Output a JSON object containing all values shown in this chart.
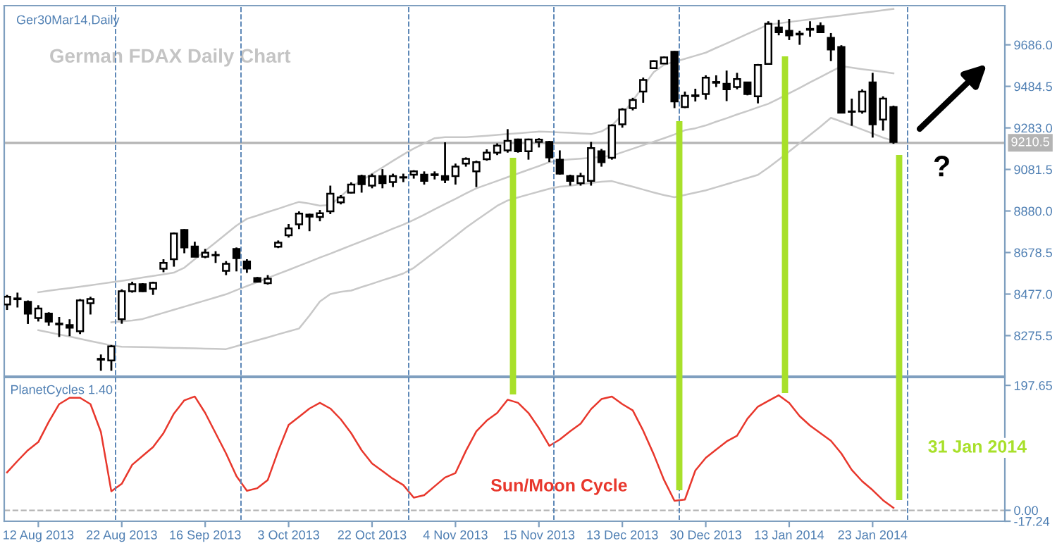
{
  "chart_data": [
    {
      "type": "candlestick",
      "categories": [
        null,
        null,
        null,
        null,
        null,
        null,
        null,
        null,
        null,
        null,
        null,
        null,
        null,
        null,
        null,
        null,
        null,
        null,
        null,
        null,
        null,
        null,
        null,
        null,
        null,
        null,
        null,
        null,
        null,
        null,
        null,
        null,
        null,
        null,
        null,
        null,
        null,
        null,
        null,
        null,
        null,
        null,
        null,
        null,
        null,
        null,
        null,
        null,
        null,
        null,
        null,
        null,
        null,
        null,
        null,
        null,
        null,
        null,
        null,
        null,
        null,
        null,
        null,
        null,
        null,
        null,
        null,
        null,
        null,
        null,
        null,
        null,
        null,
        null,
        null,
        null,
        null,
        null,
        null,
        null,
        null,
        null,
        null,
        null,
        null,
        null
      ],
      "ohlc": [
        [
          8427,
          8473,
          8400,
          8464
        ],
        [
          8456,
          8484,
          8412,
          8452
        ],
        [
          8439,
          8446,
          8332,
          8382
        ],
        [
          8361,
          8423,
          8344,
          8407
        ],
        [
          8382,
          8389,
          8323,
          8344
        ],
        [
          8330,
          8366,
          8269,
          8334
        ],
        [
          8327,
          8355,
          8273,
          8314
        ],
        [
          8297,
          8453,
          8283,
          8446
        ],
        [
          8433,
          8464,
          8378,
          8453
        ],
        [
          8163,
          8184,
          8105,
          8159
        ],
        [
          8155,
          8230,
          8105,
          8223
        ],
        [
          8355,
          8500,
          8333,
          8491
        ],
        [
          8491,
          8537,
          8484,
          8525
        ],
        [
          8525,
          8530,
          8487,
          8491
        ],
        [
          8503,
          8537,
          8473,
          8532
        ],
        [
          8600,
          8646,
          8583,
          8628
        ],
        [
          8646,
          8776,
          8610,
          8771
        ],
        [
          8788,
          8792,
          8675,
          8703
        ],
        [
          8708,
          8731,
          8656,
          8658
        ],
        [
          8658,
          8696,
          8651,
          8678
        ],
        [
          8665,
          8685,
          8628,
          8667
        ],
        [
          8590,
          8637,
          8569,
          8624
        ],
        [
          8696,
          8703,
          8587,
          8651
        ],
        [
          8635,
          8646,
          8580,
          8601
        ],
        [
          8555,
          8560,
          8535,
          8537
        ],
        [
          8530,
          8569,
          8523,
          8551
        ],
        [
          8707,
          8737,
          8700,
          8726
        ],
        [
          8762,
          8817,
          8751,
          8796
        ],
        [
          8815,
          8878,
          8792,
          8867
        ],
        [
          8862,
          8867,
          8782,
          8853
        ],
        [
          8851,
          8885,
          8830,
          8869
        ],
        [
          8878,
          9003,
          8865,
          8964
        ],
        [
          8922,
          8957,
          8912,
          8946
        ],
        [
          8969,
          9019,
          8965,
          9008
        ],
        [
          9049,
          9056,
          8969,
          9010
        ],
        [
          9003,
          9061,
          8990,
          9049
        ],
        [
          9049,
          9083,
          8990,
          9015
        ],
        [
          9020,
          9061,
          8996,
          9049
        ],
        [
          9042,
          9061,
          9020,
          9044
        ],
        [
          9056,
          9078,
          9037,
          9072
        ],
        [
          9056,
          9072,
          9008,
          9026
        ],
        [
          9058,
          9072,
          9033,
          9054
        ],
        [
          9049,
          9213,
          9015,
          9031
        ],
        [
          9049,
          9110,
          9008,
          9095
        ],
        [
          9110,
          9140,
          9095,
          9133
        ],
        [
          9072,
          9124,
          8996,
          9117
        ],
        [
          9131,
          9179,
          9124,
          9163
        ],
        [
          9163,
          9208,
          9151,
          9197
        ],
        [
          9174,
          9277,
          9163,
          9220
        ],
        [
          9227,
          9231,
          9163,
          9170
        ],
        [
          9170,
          9231,
          9129,
          9227
        ],
        [
          9215,
          9233,
          9188,
          9226
        ],
        [
          9215,
          9220,
          9117,
          9140
        ],
        [
          9129,
          9174,
          9056,
          9061
        ],
        [
          9049,
          9056,
          9003,
          9026
        ],
        [
          9015,
          9065,
          9003,
          9049
        ],
        [
          9026,
          9215,
          9003,
          9185
        ],
        [
          9170,
          9181,
          9095,
          9117
        ],
        [
          9138,
          9300,
          9129,
          9295
        ],
        [
          9300,
          9379,
          9284,
          9372
        ],
        [
          9379,
          9429,
          9368,
          9418
        ],
        [
          9459,
          9527,
          9405,
          9516
        ],
        [
          9573,
          9611,
          9571,
          9607
        ],
        [
          9595,
          9629,
          9593,
          9625
        ],
        [
          9652,
          9656,
          9379,
          9411
        ],
        [
          9384,
          9459,
          9379,
          9439
        ],
        [
          9437,
          9473,
          9411,
          9441
        ],
        [
          9447,
          9538,
          9420,
          9527
        ],
        [
          9502,
          9538,
          9481,
          9506
        ],
        [
          9497,
          9561,
          9413,
          9470
        ],
        [
          9481,
          9550,
          9470,
          9520
        ],
        [
          9504,
          9506,
          9441,
          9447
        ],
        [
          9436,
          9593,
          9402,
          9588
        ],
        [
          9593,
          9800,
          9589,
          9788
        ],
        [
          9770,
          9807,
          9732,
          9747
        ],
        [
          9754,
          9811,
          9709,
          9732
        ],
        [
          9736,
          9754,
          9686,
          9740
        ],
        [
          9759,
          9800,
          9725,
          9763
        ],
        [
          9777,
          9795,
          9743,
          9747
        ],
        [
          9720,
          9743,
          9607,
          9663
        ],
        [
          9675,
          9684,
          9357,
          9357
        ],
        [
          9361,
          9425,
          9293,
          9363
        ],
        [
          9363,
          9470,
          9352,
          9459
        ],
        [
          9504,
          9550,
          9236,
          9300
        ],
        [
          9323,
          9436,
          9270,
          9425
        ],
        [
          9384,
          9391,
          9206,
          9215
        ]
      ],
      "series": [
        {
          "type": "line",
          "color": "#c8c8c8",
          "values": [
            null,
            null,
            null,
            8486,
            8493,
            8500,
            8506,
            8513,
            8520,
            8527,
            8534,
            8541,
            8549,
            8557,
            8565,
            8573,
            8581,
            8605,
            8646,
            8687,
            8727,
            8768,
            8809,
            8842,
            8858,
            8875,
            8891,
            8908,
            8924,
            8916,
            8906,
            8909,
            8951,
            8996,
            9028,
            9060,
            9091,
            9123,
            9154,
            9183,
            9208,
            9233,
            9238,
            9238,
            9238,
            9241,
            9245,
            9249,
            9253,
            9257,
            9261,
            9265,
            9264,
            9261,
            9259,
            9256,
            9253,
            9266,
            9295,
            9347,
            9416,
            9484,
            9553,
            9589,
            9604,
            9618,
            9633,
            9648,
            9671,
            9693,
            9716,
            9739,
            9761,
            9784,
            9790,
            9797,
            9803,
            9809,
            9816,
            9822,
            9828,
            9835,
            9841,
            9847,
            9854,
            9860
          ]
        },
        {
          "type": "line",
          "color": "#c8c8c8",
          "values": [
            null,
            null,
            null,
            null,
            null,
            null,
            null,
            null,
            null,
            null,
            8340,
            8345,
            8349,
            8356,
            8371,
            8386,
            8401,
            8416,
            8431,
            8446,
            8461,
            8476,
            8496,
            8516,
            8535,
            8555,
            8575,
            8594,
            8614,
            8634,
            8654,
            8673,
            8693,
            8713,
            8733,
            8753,
            8773,
            8794,
            8814,
            8837,
            8862,
            8888,
            8914,
            8939,
            8965,
            8990,
            9008,
            9026,
            9044,
            9062,
            9080,
            9098,
            9117,
            9126,
            9130,
            9134,
            9138,
            9142,
            9148,
            9165,
            9182,
            9199,
            9216,
            9233,
            9251,
            9272,
            9281,
            9295,
            9313,
            9330,
            9348,
            9365,
            9383,
            9400,
            9425,
            9451,
            9477,
            9504,
            9530,
            9556,
            9582,
            9575,
            9568,
            9562,
            9555,
            9548
          ]
        },
        {
          "type": "line",
          "color": "#c8c8c8",
          "values": [
            null,
            null,
            null,
            8302,
            8292,
            8281,
            8271,
            8260,
            8249,
            8239,
            8228,
            8222,
            8221,
            8220,
            8219,
            8217,
            8216,
            8215,
            8214,
            8212,
            8211,
            8210,
            8224,
            8239,
            8253,
            8267,
            8282,
            8296,
            8310,
            8373,
            8441,
            8477,
            8488,
            8494,
            8511,
            8527,
            8544,
            8560,
            8577,
            8604,
            8643,
            8681,
            8720,
            8759,
            8799,
            8835,
            8870,
            8905,
            8931,
            8946,
            8960,
            8974,
            8988,
            8998,
            9002,
            9010,
            9016,
            9022,
            9025,
            9011,
            8998,
            8984,
            8970,
            8957,
            8947,
            8958,
            8969,
            8980,
            8995,
            9010,
            9025,
            9040,
            9055,
            9090,
            9129,
            9169,
            9209,
            9249,
            9289,
            9332,
            9314,
            9295,
            9275,
            9256,
            9236,
            9220
          ]
        }
      ],
      "ylim": [
        8079,
        9876
      ],
      "yticks": [
        {
          "value": 8275.5,
          "label": "8275.5"
        },
        {
          "value": 8477,
          "label": "8477.0"
        },
        {
          "value": 8678.5,
          "label": "8678.5"
        },
        {
          "value": 8880,
          "label": "8880.0"
        },
        {
          "value": 9081.5,
          "label": "9081.5"
        },
        {
          "value": 9283,
          "label": "9283.0"
        },
        {
          "value": 9484.5,
          "label": "9484.5"
        },
        {
          "value": 9686,
          "label": "9686.0"
        }
      ],
      "ref_lines": [
        {
          "axis": "y",
          "value": 9210.5,
          "label": "9210.5",
          "color": "#b4b4b4"
        }
      ],
      "annotations": [
        "Ger30Mar14,Daily",
        "German FDAX Daily Chart",
        "?"
      ],
      "tick_labels": "y"
    },
    {
      "type": "line",
      "categories": [
        null,
        null,
        null,
        "12 Aug 2013",
        null,
        null,
        null,
        null,
        null,
        null,
        null,
        "22 Aug 2013",
        null,
        null,
        null,
        null,
        null,
        null,
        null,
        "16 Sep 2013",
        null,
        null,
        null,
        null,
        null,
        null,
        null,
        "3 Oct 2013",
        null,
        null,
        null,
        null,
        null,
        null,
        null,
        "22 Oct 2013",
        null,
        null,
        null,
        null,
        null,
        null,
        null,
        "4 Nov 2013",
        null,
        null,
        null,
        null,
        null,
        null,
        null,
        "15 Nov 2013",
        null,
        null,
        null,
        null,
        null,
        null,
        null,
        "13 Dec 2013",
        null,
        null,
        null,
        null,
        null,
        null,
        null,
        "30 Dec 2013",
        null,
        null,
        null,
        null,
        null,
        null,
        null,
        "13 Jan 2014",
        null,
        null,
        null,
        null,
        null,
        null,
        null,
        "23 Jan 2014",
        null,
        null
      ],
      "series": [
        {
          "color": "#e8372c",
          "values": [
            60,
            78,
            95,
            108,
            140,
            168,
            178,
            178,
            168,
            124,
            30,
            42,
            72,
            86,
            100,
            122,
            153,
            174,
            180,
            154,
            122,
            90,
            54,
            31,
            35,
            48,
            94,
            135,
            148,
            161,
            170,
            161,
            144,
            122,
            95,
            74,
            62,
            50,
            40,
            20,
            24,
            38,
            52,
            59,
            94,
            125,
            142,
            154,
            175,
            170,
            154,
            130,
            102,
            112,
            125,
            137,
            160,
            176,
            180,
            168,
            158,
            126,
            89,
            48,
            15,
            17,
            63,
            83,
            96,
            109,
            118,
            145,
            164,
            173,
            182,
            170,
            149,
            134,
            122,
            110,
            90,
            64,
            46,
            32,
            16,
            4
          ]
        }
      ],
      "ylim": [
        -17.24,
        210
      ],
      "yticks": [
        {
          "value": -17.24,
          "label": "-17.24"
        },
        {
          "value": 0,
          "label": "0.00"
        },
        {
          "value": 197.65,
          "label": "197.65"
        }
      ],
      "ref_lines": [
        {
          "axis": "y",
          "value": 0,
          "color": "#b4b4b4",
          "line_style": "dashed"
        }
      ],
      "annotations": [
        "PlanetCycles 1.40",
        "Sun/Moon Cycle",
        "31 Jan 2014"
      ]
    }
  ]
}
